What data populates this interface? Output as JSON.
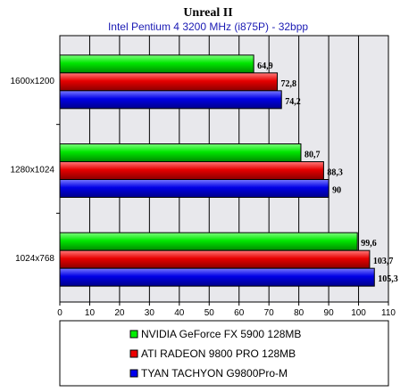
{
  "chart_data": {
    "type": "bar",
    "orientation": "horizontal",
    "title": "Unreal II",
    "subtitle": "Intel Pentium 4 3200 MHz (i875P) - 32bpp",
    "categories": [
      "1600x1200",
      "1280x1024",
      "1024x768"
    ],
    "series": [
      {
        "name": "NVIDIA GeForce FX 5900 128MB",
        "color": "#00ee00",
        "values": [
          64.9,
          80.7,
          99.6
        ],
        "labels": [
          "64,9",
          "80,7",
          "99,6"
        ]
      },
      {
        "name": "ATI RADEON 9800 PRO 128MB",
        "color": "#ee0000",
        "values": [
          72.8,
          88.3,
          103.7
        ],
        "labels": [
          "72,8",
          "88,3",
          "103,7"
        ]
      },
      {
        "name": "TYAN TACHYON G9800Pro-M",
        "color": "#0000ee",
        "values": [
          74.2,
          90,
          105.3
        ],
        "labels": [
          "74,2",
          "90",
          "105,3"
        ]
      }
    ],
    "xlim": [
      0,
      110
    ],
    "xticks": [
      0,
      10,
      20,
      30,
      40,
      50,
      60,
      70,
      80,
      90,
      100,
      110
    ],
    "grid": true,
    "legend_position": "bottom"
  }
}
